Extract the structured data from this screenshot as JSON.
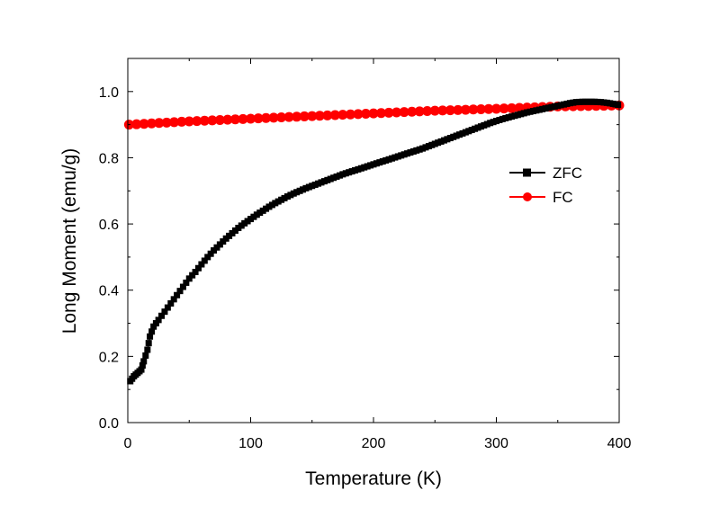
{
  "chart_data": {
    "type": "scatter",
    "xlabel": "Temperature (K)",
    "ylabel": "Long Moment (emu/g)",
    "xlim": [
      0,
      400
    ],
    "ylim": [
      0,
      1.1
    ],
    "x_ticks": [
      0,
      100,
      200,
      300,
      400
    ],
    "y_ticks": [
      0.0,
      0.2,
      0.4,
      0.6,
      0.8,
      1.0
    ],
    "x_tick_labels": [
      "0",
      "100",
      "200",
      "300",
      "400"
    ],
    "y_tick_labels": [
      "0.0",
      "0.2",
      "0.4",
      "0.6",
      "0.8",
      "1.0"
    ],
    "grid": false,
    "legend_position": "right",
    "series": [
      {
        "name": "ZFC",
        "color": "#000000",
        "marker": "square",
        "points": [
          [
            2,
            0.125
          ],
          [
            5,
            0.14
          ],
          [
            8,
            0.15
          ],
          [
            11,
            0.16
          ],
          [
            13,
            0.185
          ],
          [
            16,
            0.22
          ],
          [
            18,
            0.26
          ],
          [
            21,
            0.29
          ],
          [
            25,
            0.31
          ],
          [
            30,
            0.335
          ],
          [
            35,
            0.36
          ],
          [
            40,
            0.385
          ],
          [
            45,
            0.41
          ],
          [
            50,
            0.435
          ],
          [
            55,
            0.455
          ],
          [
            60,
            0.478
          ],
          [
            65,
            0.5
          ],
          [
            70,
            0.52
          ],
          [
            75,
            0.538
          ],
          [
            80,
            0.556
          ],
          [
            85,
            0.572
          ],
          [
            90,
            0.588
          ],
          [
            95,
            0.602
          ],
          [
            100,
            0.615
          ],
          [
            105,
            0.628
          ],
          [
            110,
            0.64
          ],
          [
            115,
            0.652
          ],
          [
            120,
            0.663
          ],
          [
            125,
            0.673
          ],
          [
            130,
            0.683
          ],
          [
            135,
            0.692
          ],
          [
            140,
            0.7
          ],
          [
            145,
            0.708
          ],
          [
            150,
            0.715
          ],
          [
            155,
            0.722
          ],
          [
            160,
            0.729
          ],
          [
            165,
            0.736
          ],
          [
            170,
            0.743
          ],
          [
            175,
            0.75
          ],
          [
            180,
            0.756
          ],
          [
            185,
            0.762
          ],
          [
            190,
            0.768
          ],
          [
            195,
            0.774
          ],
          [
            200,
            0.78
          ],
          [
            205,
            0.786
          ],
          [
            210,
            0.792
          ],
          [
            215,
            0.798
          ],
          [
            220,
            0.804
          ],
          [
            225,
            0.81
          ],
          [
            230,
            0.816
          ],
          [
            235,
            0.822
          ],
          [
            240,
            0.828
          ],
          [
            245,
            0.835
          ],
          [
            250,
            0.842
          ],
          [
            255,
            0.849
          ],
          [
            260,
            0.856
          ],
          [
            265,
            0.863
          ],
          [
            270,
            0.87
          ],
          [
            275,
            0.877
          ],
          [
            280,
            0.884
          ],
          [
            285,
            0.891
          ],
          [
            290,
            0.898
          ],
          [
            295,
            0.905
          ],
          [
            300,
            0.911
          ],
          [
            305,
            0.917
          ],
          [
            310,
            0.922
          ],
          [
            315,
            0.927
          ],
          [
            320,
            0.932
          ],
          [
            325,
            0.937
          ],
          [
            330,
            0.941
          ],
          [
            335,
            0.945
          ],
          [
            340,
            0.949
          ],
          [
            345,
            0.953
          ],
          [
            350,
            0.957
          ],
          [
            355,
            0.961
          ],
          [
            360,
            0.965
          ],
          [
            365,
            0.968
          ],
          [
            370,
            0.969
          ],
          [
            375,
            0.969
          ],
          [
            380,
            0.969
          ],
          [
            385,
            0.968
          ],
          [
            390,
            0.966
          ],
          [
            395,
            0.963
          ],
          [
            399,
            0.96
          ]
        ]
      },
      {
        "name": "FC",
        "color": "#ff0000",
        "marker": "circle",
        "points": [
          [
            1,
            0.9
          ],
          [
            50,
            0.91
          ],
          [
            100,
            0.918
          ],
          [
            150,
            0.926
          ],
          [
            200,
            0.934
          ],
          [
            250,
            0.942
          ],
          [
            300,
            0.948
          ],
          [
            350,
            0.955
          ],
          [
            400,
            0.958
          ]
        ]
      }
    ]
  }
}
